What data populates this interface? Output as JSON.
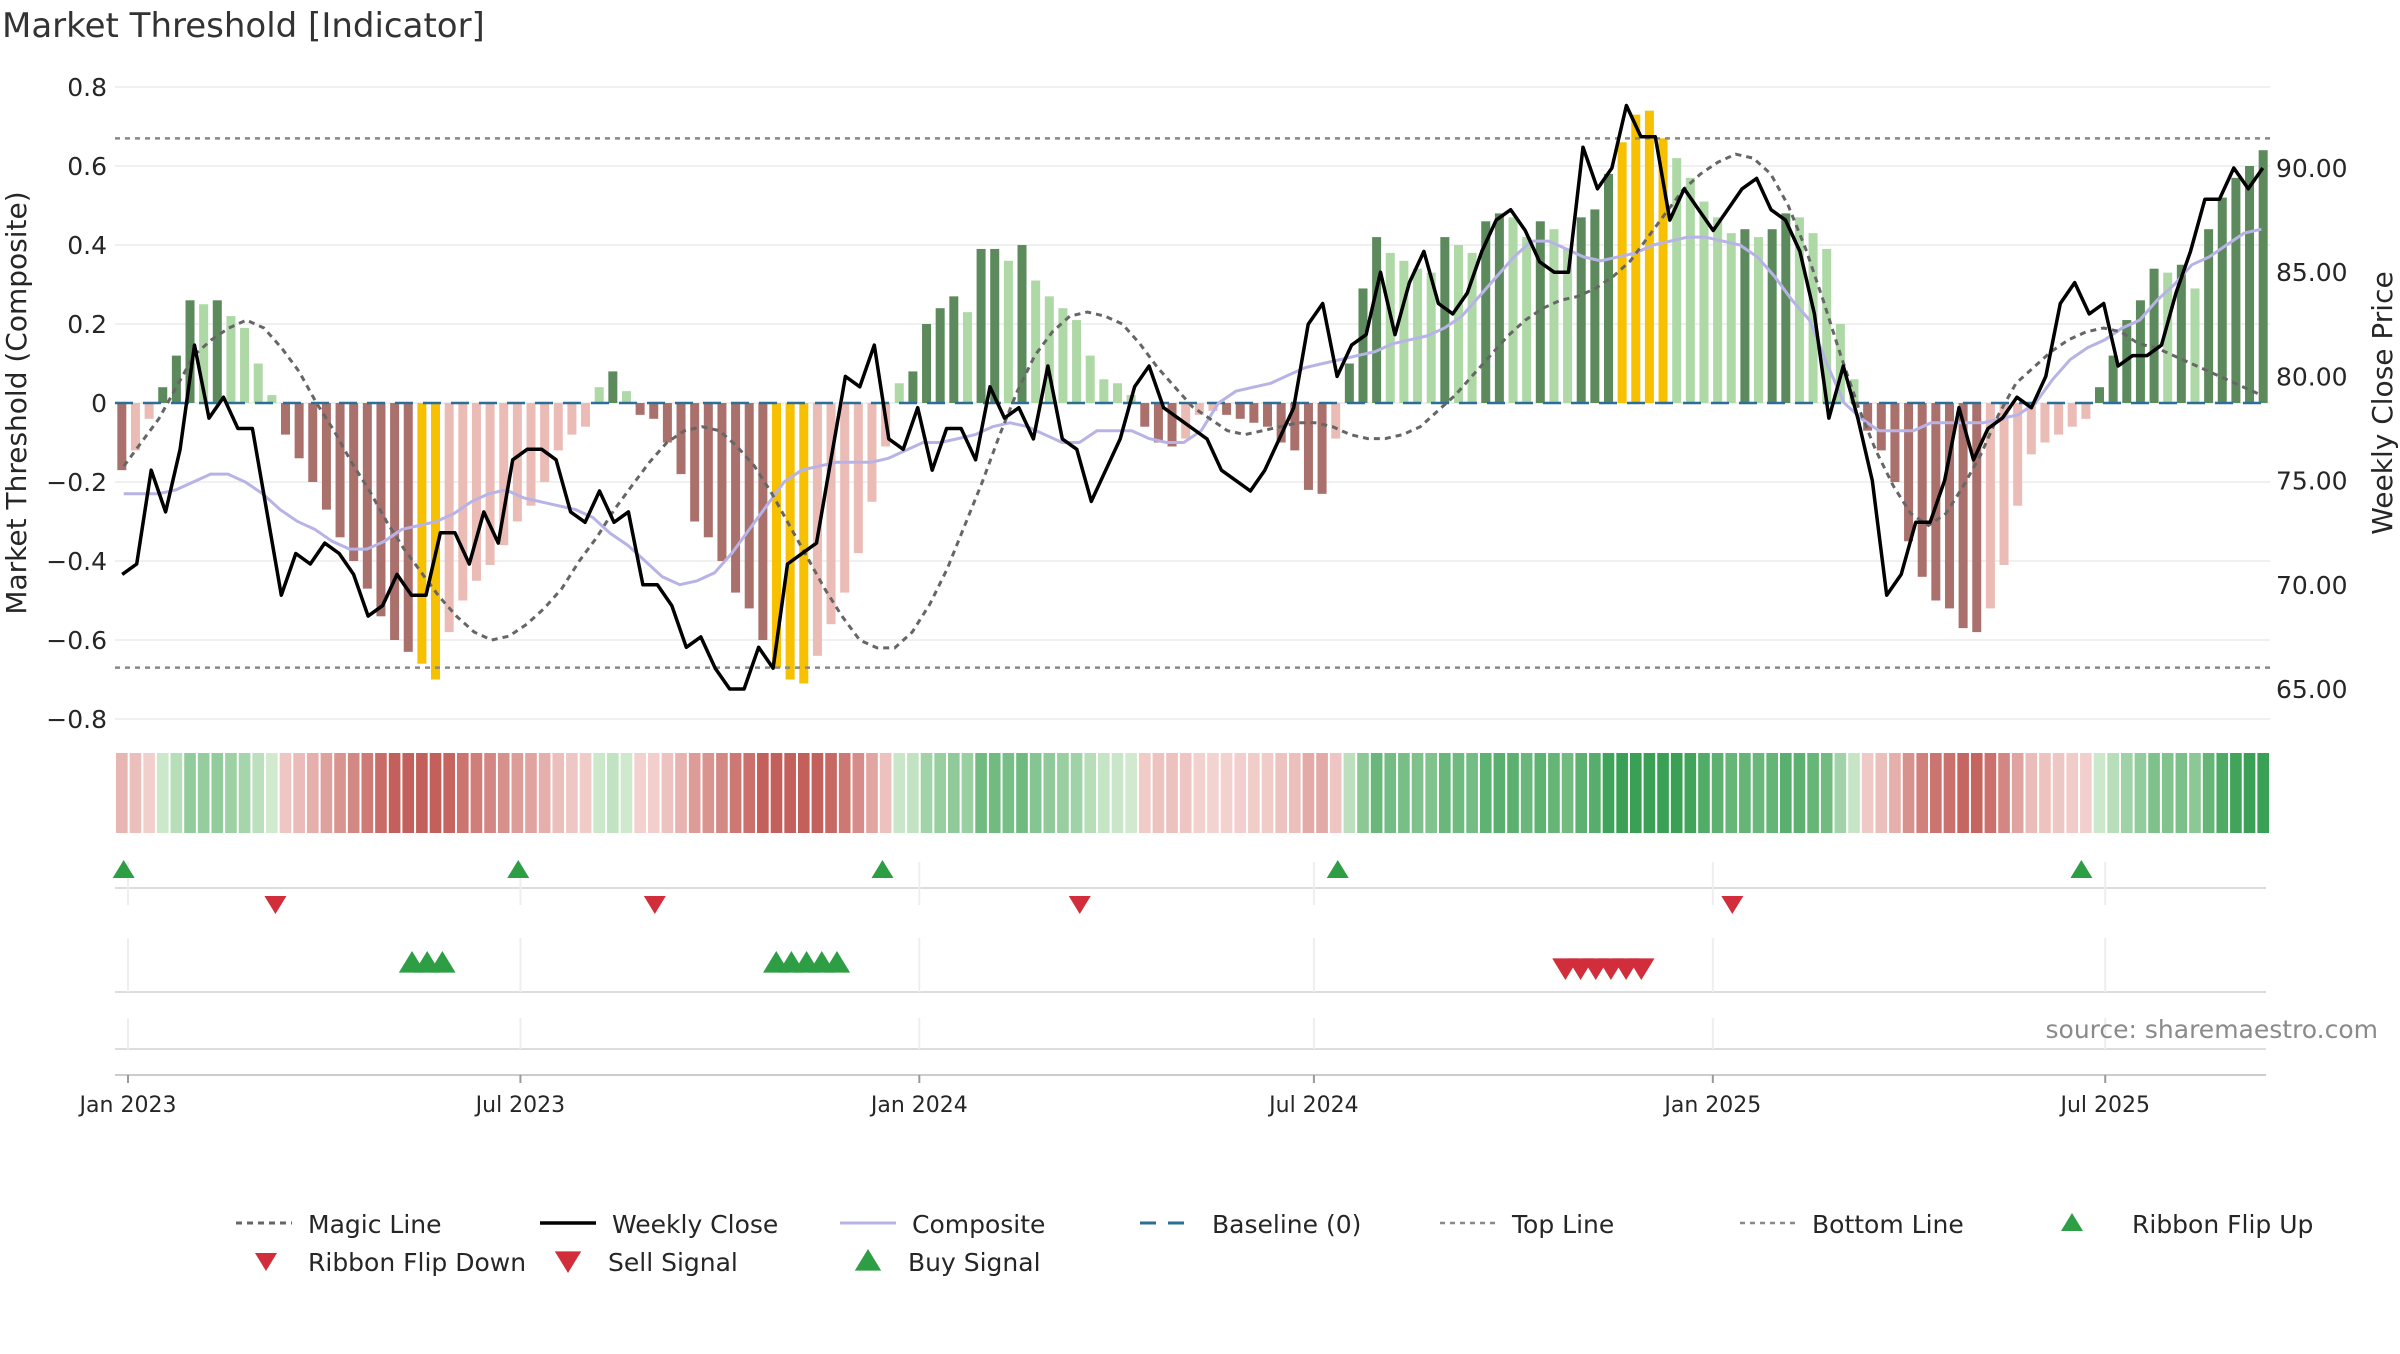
{
  "chart_data": {
    "title": "Market Threshold [Indicator]",
    "type": "bar",
    "ylabel_left": "Market Threshold (Composite)",
    "ylabel_right": "Weekly Close Price",
    "source": "source: sharemaestro.com",
    "y_left": {
      "min": -0.8,
      "max": 0.8,
      "ticks": [
        0.8,
        0.6,
        0.4,
        0.2,
        0,
        -0.2,
        -0.4,
        -0.6,
        -0.8
      ],
      "tick_labels": [
        "0.8",
        "0.6",
        "0.4",
        "0.2",
        "0",
        "−0.2",
        "−0.4",
        "−0.6",
        "−0.8"
      ]
    },
    "y_right": {
      "min": 62.5,
      "max": 94.5,
      "ticks": [
        90,
        85,
        80,
        75,
        70,
        65
      ],
      "tick_labels": [
        "90.00",
        "85.00",
        "80.00",
        "75.00",
        "70.00",
        "65.00"
      ]
    },
    "x_axis": {
      "start": "2022-12-26",
      "end": "2025-09-15",
      "ticks": [
        "2023-01-01",
        "2023-07-01",
        "2024-01-01",
        "2024-07-01",
        "2025-01-01",
        "2025-07-01"
      ],
      "tick_labels": [
        "Jan 2023",
        "Jul 2023",
        "Jan 2024",
        "Jul 2024",
        "Jan 2025",
        "Jul 2025"
      ]
    },
    "reference_lines": {
      "top": 0.67,
      "bottom": -0.67,
      "baseline": 0
    },
    "series_colors": {
      "magic_line": "#666666",
      "weekly_close": "#000000",
      "composite": "#b8b3e6",
      "baseline": "#2b6e96",
      "top_line": "#888888",
      "bottom_line": "#888888",
      "bar_pos_dark": "#5d8a5d",
      "bar_pos_light": "#aed8a6",
      "bar_neg_dark": "#a9706c",
      "bar_neg_light": "#ebbbb5",
      "bar_extreme": "#f7c000",
      "buy_marker": "#2e9e45",
      "sell_marker": "#d12d3b"
    },
    "composite_bars": [
      -0.17,
      -0.12,
      -0.04,
      0.04,
      0.12,
      0.26,
      0.25,
      0.26,
      0.22,
      0.19,
      0.1,
      0.02,
      -0.08,
      -0.14,
      -0.2,
      -0.27,
      -0.34,
      -0.4,
      -0.47,
      -0.54,
      -0.6,
      -0.63,
      -0.66,
      -0.7,
      -0.58,
      -0.5,
      -0.45,
      -0.41,
      -0.36,
      -0.3,
      -0.26,
      -0.2,
      -0.12,
      -0.08,
      -0.06,
      0.04,
      0.08,
      0.03,
      -0.03,
      -0.04,
      -0.1,
      -0.18,
      -0.3,
      -0.34,
      -0.4,
      -0.48,
      -0.52,
      -0.6,
      -0.67,
      -0.7,
      -0.71,
      -0.64,
      -0.56,
      -0.48,
      -0.38,
      -0.25,
      -0.11,
      0.05,
      0.08,
      0.2,
      0.24,
      0.27,
      0.23,
      0.39,
      0.39,
      0.36,
      0.4,
      0.31,
      0.27,
      0.24,
      0.21,
      0.12,
      0.06,
      0.05,
      0.02,
      -0.06,
      -0.1,
      -0.11,
      -0.09,
      -0.03,
      -0.02,
      -0.03,
      -0.04,
      -0.05,
      -0.06,
      -0.1,
      -0.12,
      -0.22,
      -0.23,
      -0.09,
      0.1,
      0.29,
      0.42,
      0.38,
      0.36,
      0.34,
      0.33,
      0.42,
      0.4,
      0.38,
      0.46,
      0.48,
      0.47,
      0.42,
      0.46,
      0.44,
      0.39,
      0.47,
      0.49,
      0.58,
      0.66,
      0.73,
      0.74,
      0.67,
      0.62,
      0.57,
      0.51,
      0.47,
      0.43,
      0.44,
      0.42,
      0.44,
      0.48,
      0.47,
      0.43,
      0.39,
      0.2,
      0.06,
      -0.07,
      -0.12,
      -0.2,
      -0.35,
      -0.44,
      -0.5,
      -0.52,
      -0.57,
      -0.58,
      -0.52,
      -0.41,
      -0.26,
      -0.13,
      -0.1,
      -0.08,
      -0.06,
      -0.04,
      0.04,
      0.12,
      0.21,
      0.26,
      0.34,
      0.33,
      0.35,
      0.29,
      0.44,
      0.52,
      0.57,
      0.6,
      0.64
    ],
    "weekly_close": [
      70.5,
      71,
      75.5,
      73.5,
      76.5,
      81.5,
      78,
      79,
      77.5,
      77.5,
      73.5,
      69.5,
      71.5,
      71,
      72,
      71.5,
      70.5,
      68.5,
      69,
      70.5,
      69.5,
      69.5,
      72.5,
      72.5,
      71,
      73.5,
      72,
      76,
      76.5,
      76.5,
      76,
      73.5,
      73,
      74.5,
      73,
      73.5,
      70,
      70,
      69,
      67,
      67.5,
      66,
      65,
      65,
      67,
      66,
      71,
      71.5,
      72,
      76,
      80,
      79.5,
      81.5,
      77,
      76.5,
      78.5,
      75.5,
      77.5,
      77.5,
      76,
      79.5,
      78,
      78.5,
      77,
      80.5,
      77,
      76.5,
      74,
      75.5,
      77,
      79.5,
      80.5,
      78.5,
      78,
      77.5,
      77,
      75.5,
      75,
      74.5,
      75.5,
      77,
      78.5,
      82.5,
      83.5,
      80,
      81.5,
      82,
      85,
      82,
      84.5,
      86,
      83.5,
      83,
      84,
      86,
      87.5,
      88,
      87,
      85.5,
      85,
      85,
      91,
      89,
      90,
      93,
      91.5,
      91.5,
      87.5,
      89,
      88,
      87,
      88,
      89,
      89.5,
      88,
      87.5,
      86,
      83,
      78,
      80.5,
      78,
      75,
      69.5,
      70.5,
      73,
      73,
      75,
      78.5,
      76,
      77.5,
      78,
      79,
      78.5,
      80,
      83.5,
      84.5,
      83,
      83.5,
      80.5,
      81,
      81,
      81.5,
      84,
      86,
      88.5,
      88.5,
      90,
      89,
      90
    ],
    "magic_line": [
      -0.16,
      -0.1,
      -0.04,
      0.04,
      0.12,
      0.16,
      0.19,
      0.21,
      0.19,
      0.14,
      0.08,
      -0.0,
      -0.07,
      -0.15,
      -0.22,
      -0.3,
      -0.37,
      -0.43,
      -0.49,
      -0.54,
      -0.58,
      -0.6,
      -0.59,
      -0.56,
      -0.52,
      -0.47,
      -0.4,
      -0.34,
      -0.27,
      -0.21,
      -0.15,
      -0.1,
      -0.07,
      -0.06,
      -0.07,
      -0.11,
      -0.16,
      -0.23,
      -0.31,
      -0.39,
      -0.47,
      -0.54,
      -0.6,
      -0.62,
      -0.62,
      -0.58,
      -0.51,
      -0.42,
      -0.31,
      -0.2,
      -0.08,
      0.03,
      0.12,
      0.18,
      0.22,
      0.23,
      0.22,
      0.2,
      0.15,
      0.09,
      0.04,
      -0.01,
      -0.04,
      -0.07,
      -0.08,
      -0.07,
      -0.06,
      -0.05,
      -0.05,
      -0.06,
      -0.08,
      -0.09,
      -0.09,
      -0.08,
      -0.06,
      -0.02,
      0.02,
      0.07,
      0.12,
      0.17,
      0.21,
      0.24,
      0.26,
      0.27,
      0.29,
      0.32,
      0.36,
      0.42,
      0.48,
      0.54,
      0.58,
      0.61,
      0.63,
      0.62,
      0.58,
      0.5,
      0.39,
      0.26,
      0.12,
      -0.01,
      -0.12,
      -0.21,
      -0.28,
      -0.31,
      -0.28,
      -0.21,
      -0.13,
      -0.03,
      0.05,
      0.09,
      0.13,
      0.16,
      0.18,
      0.19,
      0.18,
      0.15,
      0.14,
      0.12,
      0.1,
      0.08,
      0.06,
      0.04,
      0.02
    ],
    "composite_line": [
      -0.23,
      -0.23,
      -0.23,
      -0.22,
      -0.2,
      -0.18,
      -0.18,
      -0.2,
      -0.23,
      -0.27,
      -0.3,
      -0.32,
      -0.35,
      -0.37,
      -0.37,
      -0.35,
      -0.32,
      -0.31,
      -0.3,
      -0.28,
      -0.25,
      -0.23,
      -0.22,
      -0.24,
      -0.25,
      -0.26,
      -0.27,
      -0.29,
      -0.33,
      -0.36,
      -0.4,
      -0.44,
      -0.46,
      -0.45,
      -0.43,
      -0.38,
      -0.32,
      -0.26,
      -0.2,
      -0.17,
      -0.16,
      -0.15,
      -0.15,
      -0.15,
      -0.14,
      -0.12,
      -0.1,
      -0.1,
      -0.09,
      -0.08,
      -0.06,
      -0.05,
      -0.06,
      -0.08,
      -0.1,
      -0.1,
      -0.07,
      -0.07,
      -0.07,
      -0.09,
      -0.1,
      -0.1,
      -0.07,
      0.0,
      0.03,
      0.04,
      0.05,
      0.07,
      0.09,
      0.1,
      0.11,
      0.12,
      0.13,
      0.15,
      0.16,
      0.17,
      0.19,
      0.22,
      0.27,
      0.32,
      0.37,
      0.41,
      0.41,
      0.39,
      0.37,
      0.36,
      0.37,
      0.38,
      0.4,
      0.41,
      0.42,
      0.42,
      0.41,
      0.4,
      0.37,
      0.32,
      0.26,
      0.21,
      0.1,
      0.0,
      -0.04,
      -0.07,
      -0.07,
      -0.07,
      -0.05,
      -0.05,
      -0.05,
      -0.05,
      -0.04,
      -0.03,
      0.0,
      0.06,
      0.11,
      0.14,
      0.16,
      0.19,
      0.21,
      0.26,
      0.3,
      0.35,
      0.37,
      0.4,
      0.43,
      0.44
    ],
    "ribbon_flip_up_dates": [
      "2022-12-30",
      "2023-06-30",
      "2023-12-15",
      "2024-07-12",
      "2025-06-20"
    ],
    "ribbon_flip_down_dates": [
      "2023-03-10",
      "2023-09-01",
      "2024-03-15",
      "2025-01-10"
    ],
    "buy_signal_dates": [
      "2023-05-12",
      "2023-05-19",
      "2023-05-26",
      "2023-10-27",
      "2023-11-03",
      "2023-11-10",
      "2023-11-17",
      "2023-11-24"
    ],
    "sell_signal_dates": [
      "2024-10-25",
      "2024-11-01",
      "2024-11-08",
      "2024-11-15",
      "2024-11-22",
      "2024-11-29"
    ],
    "legend": [
      "Magic Line",
      "Weekly Close",
      "Composite",
      "Baseline (0)",
      "Top Line",
      "Bottom Line",
      "Ribbon Flip Up",
      "Ribbon Flip Down",
      "Sell Signal",
      "Buy Signal"
    ],
    "legend_placement": "bottom",
    "grid": true
  }
}
